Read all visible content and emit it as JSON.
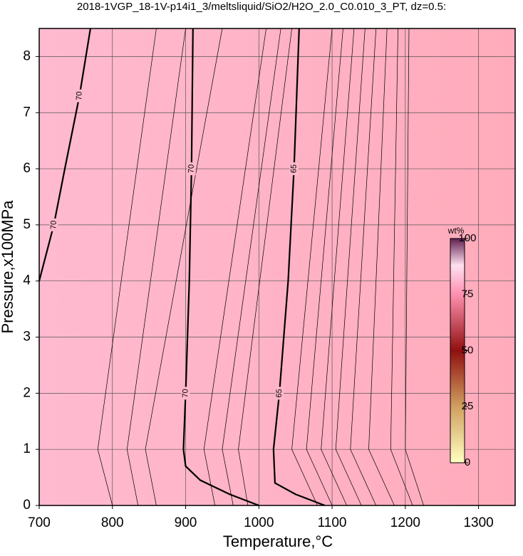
{
  "chart_data": {
    "type": "contour",
    "title": "2018-1VGP_18-1V-p14i1_3/meltsliquid/SiO2/H2O_2.0_C0.010_3_PT, dz=0.5:",
    "x_label": "Temperature,°C",
    "y_label": "Pressure,x100MPa",
    "xlim": [
      700,
      1350
    ],
    "ylim": [
      0,
      8.5
    ],
    "xticks": [
      700,
      800,
      900,
      1000,
      1100,
      1200,
      1300
    ],
    "yticks": [
      0,
      1,
      2,
      3,
      4,
      5,
      6,
      7,
      8
    ],
    "grid": true,
    "contours": [
      {
        "level": 70,
        "x": [
          910,
          908,
          905,
          900,
          897,
          900,
          920,
          960,
          1000
        ],
        "y": [
          8.5,
          6,
          4,
          2,
          1,
          0.7,
          0.45,
          0.2,
          0
        ]
      },
      {
        "level": 65,
        "x": [
          1055,
          1048,
          1040,
          1028,
          1020,
          1022,
          1050,
          1090
        ],
        "y": [
          8.5,
          6,
          4,
          2,
          1,
          0.4,
          0.2,
          0
        ]
      },
      {
        "level": 70,
        "x": [
          770,
          755,
          735,
          720,
          700
        ],
        "y": [
          8.5,
          7.3,
          6,
          5,
          4
        ]
      }
    ],
    "minor_y": [
      0,
      1,
      8.5
    ],
    "minor_x": [
      [
        940,
        925,
        1010
      ],
      [
        965,
        950,
        1030
      ],
      [
        985,
        972,
        1045
      ],
      [
        1080,
        1045,
        1100
      ],
      [
        1100,
        1065,
        1115
      ],
      [
        1120,
        1085,
        1130
      ],
      [
        1140,
        1105,
        1145
      ],
      [
        1160,
        1125,
        1160
      ],
      [
        1185,
        1150,
        1175
      ],
      [
        1210,
        1180,
        1190
      ],
      [
        1225,
        1200,
        1205
      ],
      [
        860,
        845,
        950
      ],
      [
        835,
        820,
        900
      ],
      [
        800,
        780,
        860
      ]
    ],
    "colorbar": {
      "label": "wt%",
      "lim": [
        0,
        100
      ],
      "ticks": [
        0,
        25,
        50,
        75,
        100
      ]
    }
  }
}
